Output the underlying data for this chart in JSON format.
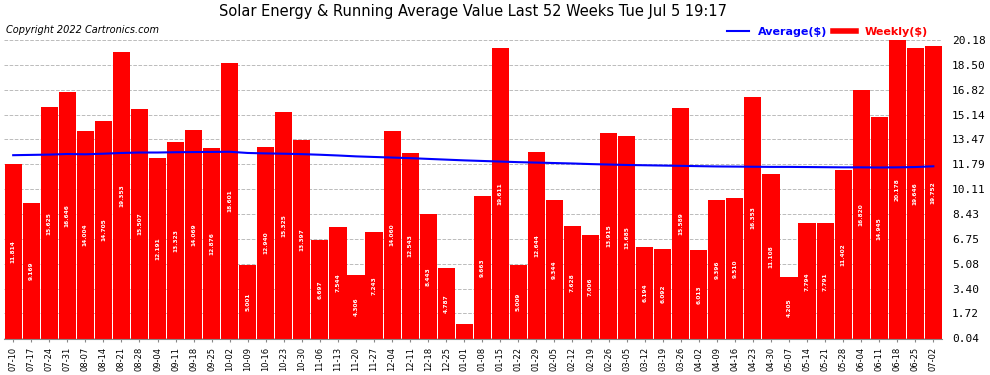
{
  "title": "Solar Energy & Running Average Value Last 52 Weeks Tue Jul 5 19:17",
  "copyright": "Copyright 2022 Cartronics.com",
  "bar_color": "#ff0000",
  "avg_line_color": "#0000ff",
  "weekly_line_color": "#ff0000",
  "background_color": "#ffffff",
  "grid_color": "#bbbbbb",
  "yticks": [
    0.04,
    1.72,
    3.4,
    5.08,
    6.75,
    8.43,
    10.11,
    11.79,
    13.47,
    15.14,
    16.82,
    18.5,
    20.18
  ],
  "categories": [
    "07-10",
    "07-17",
    "07-24",
    "07-31",
    "08-07",
    "08-14",
    "08-21",
    "08-28",
    "09-04",
    "09-11",
    "09-18",
    "09-25",
    "10-02",
    "10-09",
    "10-16",
    "10-23",
    "10-30",
    "11-06",
    "11-13",
    "11-20",
    "11-27",
    "12-04",
    "12-11",
    "12-18",
    "12-25",
    "01-01",
    "01-08",
    "01-15",
    "01-22",
    "01-29",
    "02-05",
    "02-12",
    "02-19",
    "02-26",
    "03-05",
    "03-12",
    "03-19",
    "03-26",
    "04-02",
    "04-09",
    "04-16",
    "04-23",
    "04-30",
    "05-07",
    "05-14",
    "05-21",
    "05-28",
    "06-04",
    "06-11",
    "06-18",
    "06-25",
    "07-02"
  ],
  "weekly_values": [
    11.814,
    9.169,
    15.625,
    16.646,
    14.004,
    14.705,
    19.353,
    15.507,
    12.191,
    13.323,
    14.069,
    12.876,
    18.601,
    5.001,
    12.94,
    15.325,
    13.397,
    6.697,
    7.544,
    4.306,
    7.243,
    14.06,
    12.543,
    8.443,
    4.787,
    1.013,
    9.663,
    19.611,
    5.009,
    12.644,
    9.344,
    7.628,
    7.006,
    13.915,
    13.685,
    6.194,
    6.092,
    15.589,
    6.013,
    9.396,
    9.51,
    16.353,
    11.108,
    4.205,
    7.794,
    7.791,
    11.402,
    16.82,
    14.945,
    20.178,
    19.646,
    19.752
  ],
  "avg_values": [
    12.4,
    12.42,
    12.44,
    12.48,
    12.46,
    12.5,
    12.55,
    12.58,
    12.58,
    12.6,
    12.61,
    12.62,
    12.63,
    12.55,
    12.52,
    12.5,
    12.47,
    12.43,
    12.38,
    12.32,
    12.28,
    12.24,
    12.2,
    12.15,
    12.1,
    12.05,
    12.01,
    11.97,
    11.93,
    11.9,
    11.87,
    11.84,
    11.8,
    11.77,
    11.74,
    11.72,
    11.7,
    11.68,
    11.66,
    11.64,
    11.63,
    11.62,
    11.61,
    11.61,
    11.6,
    11.59,
    11.58,
    11.58,
    11.57,
    11.58,
    11.6,
    11.65
  ],
  "legend_avg_label": "Average($)",
  "legend_weekly_label": "Weekly($)",
  "ymax": 21.5,
  "ymin": 0.0
}
